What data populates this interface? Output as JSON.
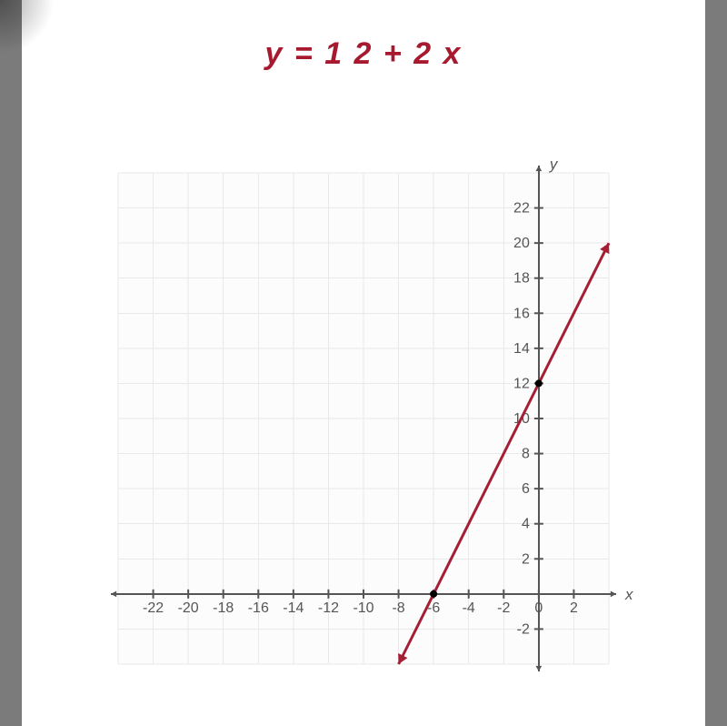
{
  "title": {
    "text": "y = 1 2 + 2 x",
    "color": "#a6192e",
    "fontsize": 34
  },
  "chart": {
    "type": "line",
    "background_color": "#ffffff",
    "grid_color": "#e9e9e9",
    "grid_bg": "#fcfcfc",
    "axis_color": "#555555",
    "tick_color": "#555555",
    "tick_fontsize": 16,
    "axis_label_fontsize": 17,
    "axis_label_style": "italic",
    "x_axis_label": "x",
    "y_axis_label": "y",
    "xlim": [
      -24,
      4
    ],
    "ylim": [
      -4,
      24
    ],
    "x_ticks": [
      -22,
      -20,
      -18,
      -16,
      -14,
      -12,
      -10,
      -8,
      -6,
      -4,
      -2,
      0,
      2
    ],
    "y_ticks": [
      -2,
      2,
      4,
      6,
      8,
      10,
      12,
      14,
      16,
      18,
      20,
      22
    ],
    "x_gridlines": [
      -24,
      -22,
      -20,
      -18,
      -16,
      -14,
      -12,
      -10,
      -8,
      -6,
      -4,
      -2,
      0,
      2,
      4
    ],
    "y_gridlines": [
      -4,
      -2,
      0,
      2,
      4,
      6,
      8,
      10,
      12,
      14,
      16,
      18,
      20,
      22,
      24
    ],
    "series": {
      "color": "#a41e34",
      "width": 3,
      "p1": {
        "x": -8,
        "y": -4
      },
      "p2": {
        "x": 4,
        "y": 20
      },
      "arrow_size": 8
    },
    "marked_points": [
      {
        "x": 0,
        "y": 12,
        "color": "#000000",
        "r": 4
      },
      {
        "x": -6,
        "y": 0,
        "color": "#000000",
        "r": 4
      }
    ],
    "axis_arrow_size": 7
  },
  "sidebars": {
    "color": "#7b7b7b",
    "width": 24
  }
}
